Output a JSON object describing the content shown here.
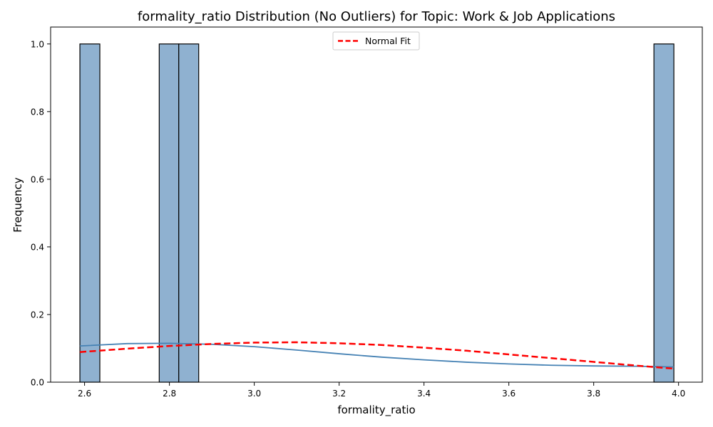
{
  "chart_data": {
    "type": "histogram",
    "title": "formality_ratio Distribution (No Outliers) for Topic: Work & Job Applications",
    "xlabel": "formality_ratio",
    "ylabel": "Frequency",
    "xlim": [
      2.52,
      4.056
    ],
    "ylim": [
      0,
      1.05
    ],
    "x_ticks": [
      "2.6",
      "2.8",
      "3.0",
      "3.2",
      "3.4",
      "3.6",
      "3.8",
      "4.0"
    ],
    "x_tick_values": [
      2.6,
      2.8,
      3.0,
      3.2,
      3.4,
      3.6,
      3.8,
      4.0
    ],
    "y_ticks": [
      "0.0",
      "0.2",
      "0.4",
      "0.6",
      "0.8",
      "1.0"
    ],
    "y_tick_values": [
      0.0,
      0.2,
      0.4,
      0.6,
      0.8,
      1.0
    ],
    "bars": [
      {
        "x0": 2.589,
        "x1": 2.636,
        "count": 1
      },
      {
        "x0": 2.776,
        "x1": 2.822,
        "count": 1
      },
      {
        "x0": 2.822,
        "x1": 2.869,
        "count": 1
      },
      {
        "x0": 3.942,
        "x1": 3.989,
        "count": 1
      }
    ],
    "kde": {
      "x": [
        2.589,
        2.7,
        2.8,
        2.9,
        3.0,
        3.1,
        3.2,
        3.3,
        3.4,
        3.5,
        3.6,
        3.7,
        3.8,
        3.9,
        3.989
      ],
      "y": [
        0.107,
        0.114,
        0.115,
        0.112,
        0.105,
        0.095,
        0.084,
        0.074,
        0.066,
        0.059,
        0.054,
        0.05,
        0.048,
        0.047,
        0.045
      ]
    },
    "normal_fit": {
      "name": "Normal Fit",
      "x": [
        2.589,
        2.7,
        2.8,
        2.9,
        3.0,
        3.1,
        3.2,
        3.3,
        3.4,
        3.5,
        3.6,
        3.7,
        3.8,
        3.9,
        3.989
      ],
      "y": [
        0.089,
        0.099,
        0.107,
        0.113,
        0.117,
        0.118,
        0.115,
        0.11,
        0.102,
        0.093,
        0.082,
        0.071,
        0.06,
        0.049,
        0.04
      ]
    },
    "legend": {
      "entries": [
        "Normal Fit"
      ],
      "position": "top-center"
    },
    "grid": false,
    "colors": {
      "bar_fill": "#8fb1d0",
      "bar_edge": "#000000",
      "kde_line": "#4682b4",
      "normal_line": "#ff0000"
    }
  }
}
